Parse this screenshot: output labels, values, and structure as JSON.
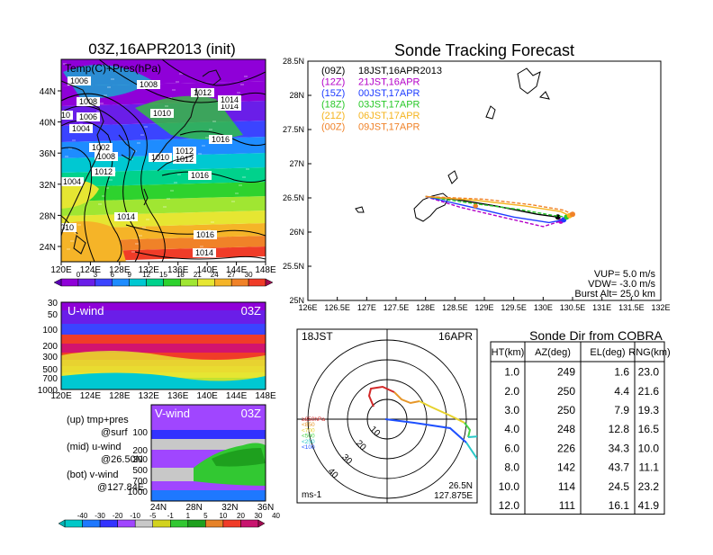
{
  "colors": {
    "palette": [
      "#8f00d8",
      "#6a1ee8",
      "#3b44ff",
      "#1e8cff",
      "#00c8d2",
      "#00d28c",
      "#2ed22e",
      "#a0e632",
      "#e6e632",
      "#f5b428",
      "#f08228",
      "#f03c28",
      "#d2146e"
    ],
    "vpalette": [
      "#00c8c8",
      "#1e78ff",
      "#3232ff",
      "#a046ff",
      "#c8c8c8",
      "#d2d21e",
      "#32c832",
      "#1ea01e",
      "#e68228",
      "#f03c28",
      "#c8146e"
    ],
    "sonde": [
      "#d22828",
      "#e69628",
      "#e6d22d",
      "#46d246",
      "#1e50ff",
      "#28c8c8",
      "#8c00c8"
    ]
  },
  "map": {
    "title": "03Z,16APR2013 (init)",
    "label": "Temp(C)+Pres(hPa)",
    "xticks": [
      "120E",
      "124E",
      "128E",
      "132E",
      "136E",
      "140E",
      "144E",
      "148E"
    ],
    "yticks": [
      "44N",
      "40N",
      "36N",
      "32N",
      "28N",
      "24N"
    ],
    "isobars": [
      "1006",
      "1008",
      "1008",
      "1010",
      "1012",
      "1014",
      "1014",
      "1006",
      "1004",
      "1002",
      "1008",
      "1010",
      "1012",
      "1012",
      "1016",
      "1016",
      "1004",
      "1012",
      "1010",
      "1014",
      "1016",
      "1014",
      "1010"
    ],
    "colorbar_labels": [
      "0",
      "3",
      "6",
      "9",
      "12",
      "15",
      "18",
      "21",
      "24",
      "27",
      "30"
    ]
  },
  "uwind": {
    "label": "U-wind",
    "time": "03Z",
    "yticks": [
      "30",
      "50",
      "100",
      "200",
      "300",
      "500",
      "700",
      "1000"
    ],
    "xticks": [
      "120E",
      "124E",
      "128E",
      "132E",
      "136E",
      "140E",
      "144E",
      "148E"
    ]
  },
  "vwind": {
    "label": "V-wind",
    "time": "03Z",
    "yticks": [
      "100",
      "200",
      "300",
      "500",
      "700",
      "1000"
    ],
    "xticks": [
      "24N",
      "28N",
      "32N",
      "36N"
    ],
    "colorbar_labels": [
      "-40",
      "-30",
      "-20",
      "-10",
      "-5",
      "-1",
      "1",
      "5",
      "10",
      "20",
      "30",
      "40"
    ]
  },
  "legend_notes": {
    "up1": "(up) tmp+pres",
    "up2": "@surf",
    "mid1": "(mid) u-wind",
    "mid2": "@26.50N",
    "bot1": "(bot) v-wind",
    "bot2": "@127.84E"
  },
  "track": {
    "title": "Sonde Tracking Forecast",
    "xticks": [
      "126E",
      "126.5E",
      "127E",
      "127.5E",
      "128E",
      "128.5E",
      "129E",
      "129.5E",
      "130E",
      "130.5E",
      "131E",
      "131.5E",
      "132E"
    ],
    "yticks": [
      "28.5N",
      "28N",
      "27.5N",
      "27N",
      "26.5N",
      "26N",
      "25.5N",
      "25N"
    ],
    "legend": [
      {
        "code": "(09Z)",
        "time": "18JST,16APR2013",
        "color": "#000000"
      },
      {
        "code": "(12Z)",
        "time": "21JST,16APR",
        "color": "#b400c8"
      },
      {
        "code": "(15Z)",
        "time": "00JST,17APR",
        "color": "#1e3cff"
      },
      {
        "code": "(18Z)",
        "time": "03JST,17APR",
        "color": "#28c828"
      },
      {
        "code": "(21Z)",
        "time": "06JST,17APR",
        "color": "#f5b41e"
      },
      {
        "code": "(00Z)",
        "time": "09JST,17APR",
        "color": "#f08228"
      }
    ],
    "params": [
      "VUP=  5.0 m/s",
      "VDW= -3.0 m/s",
      "Burst Alt= 25.0 km"
    ]
  },
  "polar": {
    "time": "18JST",
    "date": "16APR",
    "ring_labels": [
      "10",
      "20",
      "30",
      "40"
    ],
    "unit": "ms-1",
    "lat": "26.5N",
    "lon": "127.875E",
    "levels": [
      "≥850hPa",
      "<850",
      "<700",
      "<500",
      "<250",
      "<100"
    ]
  },
  "table": {
    "title": "Sonde Dir from COBRA",
    "headers": [
      "HT(km)",
      "AZ(deg)",
      "EL(deg)",
      "RNG(km)"
    ],
    "rows": [
      [
        "1.0",
        "249",
        "1.6",
        "23.0"
      ],
      [
        "2.0",
        "250",
        "4.4",
        "21.6"
      ],
      [
        "3.0",
        "250",
        "7.9",
        "19.3"
      ],
      [
        "4.0",
        "248",
        "12.8",
        "16.5"
      ],
      [
        "6.0",
        "226",
        "34.3",
        "10.0"
      ],
      [
        "8.0",
        "142",
        "43.7",
        "11.1"
      ],
      [
        "10.0",
        "114",
        "24.5",
        "23.2"
      ],
      [
        "12.0",
        "111",
        "16.1",
        "41.9"
      ]
    ]
  },
  "chart_data": [
    {
      "type": "table",
      "title": "Sonde Dir from COBRA",
      "columns": [
        "HT(km)",
        "AZ(deg)",
        "EL(deg)",
        "RNG(km)"
      ],
      "rows": [
        [
          1.0,
          249,
          1.6,
          23.0
        ],
        [
          2.0,
          250,
          4.4,
          21.6
        ],
        [
          3.0,
          250,
          7.9,
          19.3
        ],
        [
          4.0,
          248,
          12.8,
          16.5
        ],
        [
          6.0,
          226,
          34.3,
          10.0
        ],
        [
          8.0,
          142,
          43.7,
          11.1
        ],
        [
          10.0,
          114,
          24.5,
          23.2
        ],
        [
          12.0,
          111,
          16.1,
          41.9
        ]
      ]
    },
    {
      "type": "line",
      "title": "Sonde Tracking Forecast",
      "xlim": [
        126,
        132
      ],
      "ylim": [
        25,
        28.5
      ],
      "series": [
        {
          "name": "(09Z) 18JST,16APR2013",
          "x": [
            128.0,
            128.5,
            129.2,
            129.9,
            130.25
          ],
          "y": [
            26.52,
            26.48,
            26.38,
            26.26,
            26.22
          ]
        },
        {
          "name": "(12Z) 21JST,16APR",
          "x": [
            128.0,
            128.6,
            129.3,
            130.0,
            130.3
          ],
          "y": [
            26.52,
            26.36,
            26.22,
            26.08,
            26.16
          ]
        },
        {
          "name": "(15Z) 00JST,17APR",
          "x": [
            128.0,
            128.7,
            129.5,
            130.1,
            130.35
          ],
          "y": [
            26.52,
            26.38,
            26.22,
            26.14,
            26.18
          ]
        },
        {
          "name": "(18Z) 03JST,17APR",
          "x": [
            128.0,
            128.8,
            129.6,
            130.2,
            130.4
          ],
          "y": [
            26.52,
            26.42,
            26.33,
            26.24,
            26.22
          ]
        },
        {
          "name": "(21Z) 06JST,17APR",
          "x": [
            128.0,
            128.9,
            129.7,
            130.3,
            130.45
          ],
          "y": [
            26.52,
            26.46,
            26.38,
            26.3,
            26.24
          ]
        },
        {
          "name": "(00Z) 09JST,17APR",
          "x": [
            128.0,
            129.0,
            129.8,
            130.35,
            130.5
          ],
          "y": [
            26.52,
            26.48,
            26.4,
            26.32,
            26.26
          ]
        }
      ]
    },
    {
      "type": "scatter",
      "title": "",
      "x_label": "AZ(deg)",
      "y_label": "RNG(km)",
      "values": [
        [
          249,
          23.0
        ],
        [
          250,
          21.6
        ],
        [
          250,
          19.3
        ],
        [
          248,
          16.5
        ],
        [
          226,
          10.0
        ],
        [
          142,
          11.1
        ],
        [
          114,
          23.2
        ],
        [
          111,
          41.9
        ]
      ]
    }
  ]
}
